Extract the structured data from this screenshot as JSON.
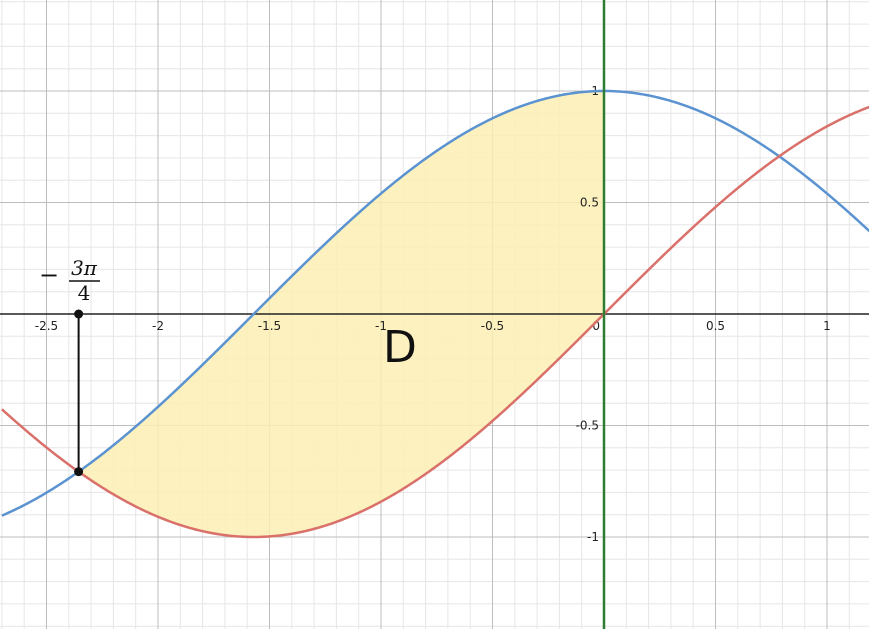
{
  "chart_data": {
    "type": "line",
    "xlim": [
      -2.7,
      1.2
    ],
    "ylim": [
      -1.415,
      1.41
    ],
    "grid": true,
    "x_ticks": [
      {
        "value": -2.5,
        "label": "-2.5"
      },
      {
        "value": -2,
        "label": "-2"
      },
      {
        "value": -1.5,
        "label": "-1.5"
      },
      {
        "value": -1,
        "label": "-1"
      },
      {
        "value": -0.5,
        "label": "-0.5"
      },
      {
        "value": 0,
        "label": "0"
      },
      {
        "value": 0.5,
        "label": "0.5"
      },
      {
        "value": 1,
        "label": "1"
      }
    ],
    "y_ticks": [
      {
        "value": 1,
        "label": "1"
      },
      {
        "value": 0.5,
        "label": "0.5"
      },
      {
        "value": -0.5,
        "label": "-0.5"
      },
      {
        "value": -1,
        "label": "-1"
      }
    ],
    "series": [
      {
        "function": "cos",
        "color": "#5b93d1"
      },
      {
        "function": "sin",
        "color": "#d9706a"
      }
    ],
    "region": {
      "label": "D",
      "x_from": -2.356,
      "x_to": 0,
      "color": "#fdf0b4"
    },
    "vertical_line": {
      "x": 0,
      "color": "#2e7d32"
    },
    "annotation": {
      "x": -2.356,
      "y_top": 0,
      "y_bottom": -0.7071,
      "minus": "−",
      "numerator": "3π",
      "denominator": "4"
    }
  }
}
